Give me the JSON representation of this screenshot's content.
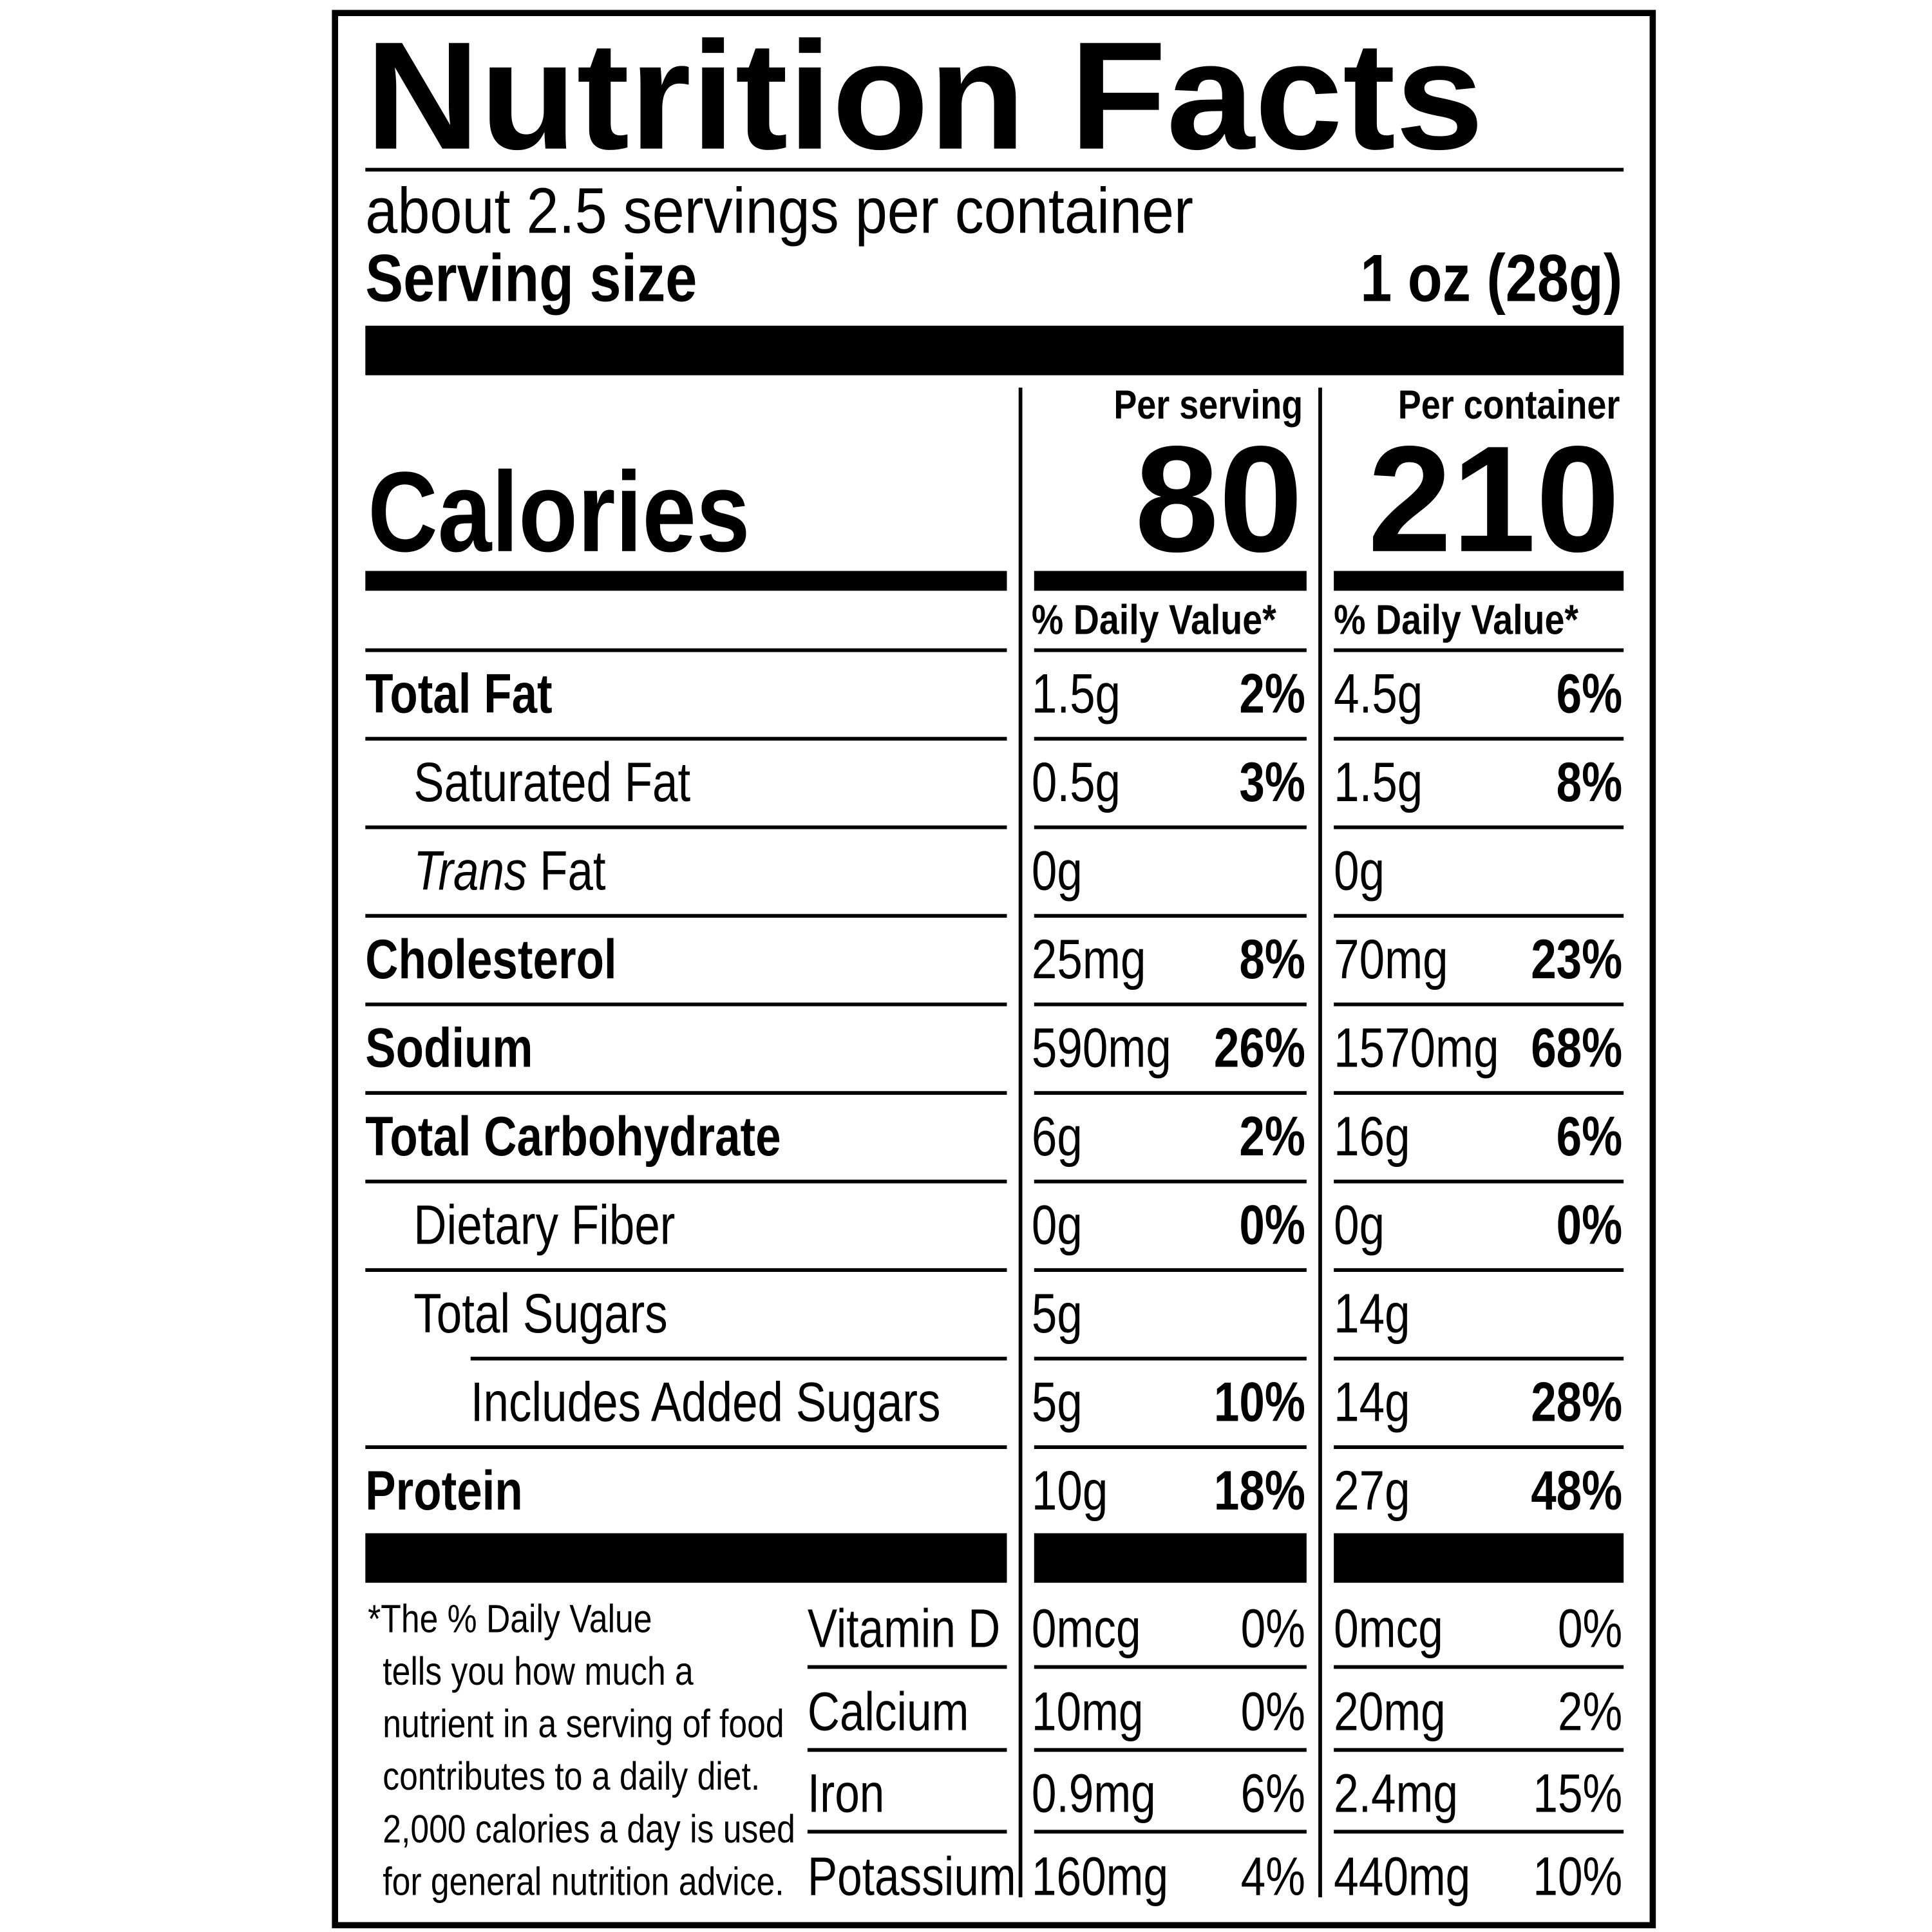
{
  "header": {
    "title": "Nutrition Facts",
    "servings": "about 2.5 servings per container",
    "serving_size_label": "Serving size",
    "serving_size": "1 oz (28g)"
  },
  "columns": [
    "Per serving",
    "Per container"
  ],
  "calories": {
    "label": "Calories",
    "values": [
      "80",
      "210"
    ]
  },
  "daily_value_header": "% Daily Value*",
  "nutrients": [
    {
      "name": "Total Fat",
      "per_serving": {
        "amount": "1.5g",
        "dv": "2%"
      },
      "per_container": {
        "amount": "4.5g",
        "dv": "6%"
      }
    },
    {
      "name": "Saturated Fat",
      "per_serving": {
        "amount": "0.5g",
        "dv": "3%"
      },
      "per_container": {
        "amount": "1.5g",
        "dv": "8%"
      }
    },
    {
      "name": "Trans Fat",
      "per_serving": {
        "amount": "0g"
      },
      "per_container": {
        "amount": "0g"
      }
    },
    {
      "name": "Cholesterol",
      "per_serving": {
        "amount": "25mg",
        "dv": "8%"
      },
      "per_container": {
        "amount": "70mg",
        "dv": "23%"
      }
    },
    {
      "name": "Sodium",
      "per_serving": {
        "amount": "590mg",
        "dv": "26%"
      },
      "per_container": {
        "amount": "1570mg",
        "dv": "68%"
      }
    },
    {
      "name": "Total Carbohydrate",
      "per_serving": {
        "amount": "6g",
        "dv": "2%"
      },
      "per_container": {
        "amount": "16g",
        "dv": "6%"
      }
    },
    {
      "name": "Dietary Fiber",
      "per_serving": {
        "amount": "0g",
        "dv": "0%"
      },
      "per_container": {
        "amount": "0g",
        "dv": "0%"
      }
    },
    {
      "name": "Total Sugars",
      "per_serving": {
        "amount": "5g"
      },
      "per_container": {
        "amount": "14g"
      }
    },
    {
      "name": "Includes Added Sugars",
      "per_serving": {
        "amount": "5g",
        "dv": "10%"
      },
      "per_container": {
        "amount": "14g",
        "dv": "28%"
      }
    },
    {
      "name": "Protein",
      "per_serving": {
        "amount": "10g",
        "dv": "18%"
      },
      "per_container": {
        "amount": "27g",
        "dv": "48%"
      }
    }
  ],
  "vitamins": [
    {
      "name": "Vitamin D",
      "per_serving": {
        "amount": "0mcg",
        "dv": "0%"
      },
      "per_container": {
        "amount": "0mcg",
        "dv": "0%"
      }
    },
    {
      "name": "Calcium",
      "per_serving": {
        "amount": "10mg",
        "dv": "0%"
      },
      "per_container": {
        "amount": "20mg",
        "dv": "2%"
      }
    },
    {
      "name": "Iron",
      "per_serving": {
        "amount": "0.9mg",
        "dv": "6%"
      },
      "per_container": {
        "amount": "2.4mg",
        "dv": "15%"
      }
    },
    {
      "name": "Potassium",
      "per_serving": {
        "amount": "160mg",
        "dv": "4%"
      },
      "per_container": {
        "amount": "440mg",
        "dv": "10%"
      }
    }
  ],
  "footnote": [
    "*The % Daily Value",
    "tells you how much a",
    "nutrient in a serving of food",
    "contributes to a daily diet.",
    "2,000 calories a day is used",
    "for general nutrition advice."
  ]
}
